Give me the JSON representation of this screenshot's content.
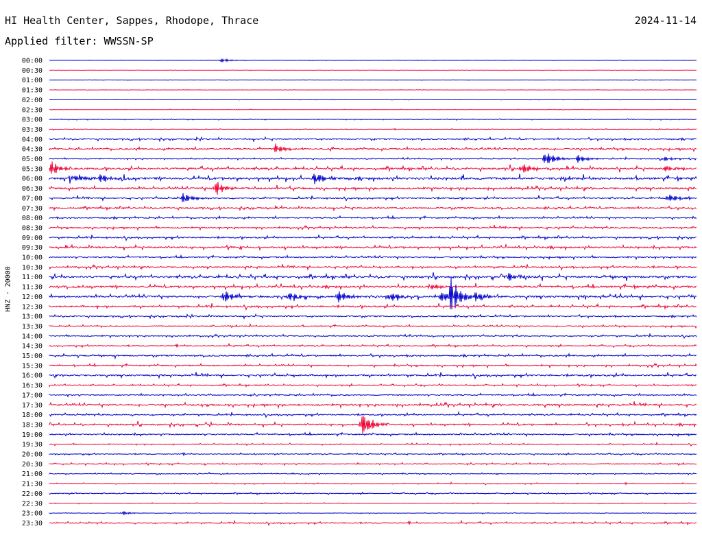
{
  "header": {
    "station": "HI Health Center, Sappes, Rhodope, Thrace",
    "date": "2024-11-14",
    "filter": "Applied filter: WWSSN-SP"
  },
  "colors": {
    "even_row": "#0000cc",
    "odd_row": "#ee0033"
  },
  "chart_data": {
    "type": "line",
    "title": "HI Health Center, Sappes, Rhodope, Thrace",
    "ylabel": "HNZ - 20000",
    "xlabel": "",
    "tick_labels": [
      "00:00",
      "00:30",
      "01:00",
      "01:30",
      "02:00",
      "02:30",
      "03:00",
      "03:30",
      "04:00",
      "04:30",
      "05:00",
      "05:30",
      "06:00",
      "06:30",
      "07:00",
      "07:30",
      "08:00",
      "08:30",
      "09:00",
      "09:30",
      "10:00",
      "10:30",
      "11:00",
      "11:30",
      "12:00",
      "12:30",
      "13:00",
      "13:30",
      "14:00",
      "14:30",
      "15:00",
      "15:30",
      "16:00",
      "16:30",
      "17:00",
      "17:30",
      "18:00",
      "18:30",
      "19:00",
      "19:30",
      "20:00",
      "20:30",
      "21:00",
      "21:30",
      "22:00",
      "22:30",
      "23:00",
      "23:30"
    ],
    "noise_level": [
      0.2,
      0.2,
      0.2,
      0.2,
      0.2,
      0.3,
      0.5,
      0.4,
      1.2,
      1.3,
      0.8,
      1.8,
      2.2,
      1.6,
      1.2,
      1.3,
      1.2,
      1.2,
      1.3,
      1.6,
      1.2,
      1.3,
      2.0,
      1.8,
      1.8,
      1.5,
      1.2,
      1.0,
      1.0,
      1.0,
      1.3,
      1.2,
      1.5,
      1.0,
      1.1,
      1.6,
      1.2,
      1.5,
      1.2,
      0.8,
      0.8,
      0.9,
      0.7,
      0.6,
      0.8,
      0.5,
      0.4,
      1.0
    ],
    "events": [
      {
        "row": 0,
        "minute": 8,
        "amplitude": 3
      },
      {
        "row": 9,
        "minute": 10.5,
        "amplitude": 8
      },
      {
        "row": 10,
        "minute": 23,
        "amplitude": 13
      },
      {
        "row": 10,
        "minute": 24.5,
        "amplitude": 7
      },
      {
        "row": 10,
        "minute": 28.5,
        "amplitude": 4
      },
      {
        "row": 11,
        "minute": 0.1,
        "amplitude": 12
      },
      {
        "row": 11,
        "minute": 21.9,
        "amplitude": 9
      },
      {
        "row": 11,
        "minute": 28.5,
        "amplitude": 6
      },
      {
        "row": 12,
        "minute": 1.1,
        "amplitude": 8
      },
      {
        "row": 12,
        "minute": 2.4,
        "amplitude": 9
      },
      {
        "row": 12,
        "minute": 12.3,
        "amplitude": 10
      },
      {
        "row": 13,
        "minute": 7.7,
        "amplitude": 12
      },
      {
        "row": 14,
        "minute": 6.2,
        "amplitude": 10
      },
      {
        "row": 14,
        "minute": 28.7,
        "amplitude": 8
      },
      {
        "row": 22,
        "minute": 21.2,
        "amplitude": 8
      },
      {
        "row": 23,
        "minute": 17.8,
        "amplitude": 5
      },
      {
        "row": 24,
        "minute": 8.1,
        "amplitude": 11
      },
      {
        "row": 24,
        "minute": 11.1,
        "amplitude": 8
      },
      {
        "row": 24,
        "minute": 13.4,
        "amplitude": 10
      },
      {
        "row": 24,
        "minute": 15.8,
        "amplitude": 9
      },
      {
        "row": 24,
        "minute": 18.2,
        "amplitude": 9
      },
      {
        "row": 24,
        "minute": 18.6,
        "amplitude": 30
      },
      {
        "row": 24,
        "minute": 19.8,
        "amplitude": 7
      },
      {
        "row": 37,
        "minute": 14.5,
        "amplitude": 22
      },
      {
        "row": 46,
        "minute": 3.4,
        "amplitude": 3
      }
    ]
  }
}
